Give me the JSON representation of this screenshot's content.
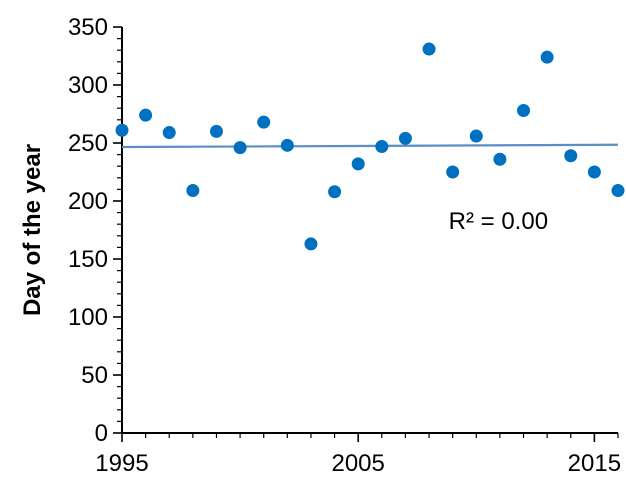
{
  "chart_data": {
    "type": "scatter",
    "title": "",
    "xlabel": "",
    "ylabel": "Day of the year",
    "xlim": [
      1995,
      2016
    ],
    "ylim": [
      0,
      350
    ],
    "grid": false,
    "x_ticks": [
      1995,
      2005,
      2015
    ],
    "y_ticks": [
      0,
      50,
      100,
      150,
      200,
      250,
      300,
      350
    ],
    "x_tick_labels": [
      "1995",
      "2005",
      "2015"
    ],
    "y_tick_labels": [
      "0",
      "50",
      "100",
      "150",
      "200",
      "250",
      "300",
      "350"
    ],
    "series": [
      {
        "x": [
          1995,
          1996,
          1997,
          1998,
          1999,
          2000,
          2001,
          2002,
          2003,
          2004,
          2005,
          2006,
          2007,
          2008,
          2009,
          2010,
          2011,
          2012,
          2013,
          2014,
          2015,
          2016
        ],
        "values": [
          261,
          274,
          259,
          209,
          260,
          246,
          268,
          248,
          163,
          208,
          232,
          247,
          254,
          331,
          225,
          256,
          236,
          278,
          324,
          239,
          225,
          209
        ],
        "color": "#0070C0"
      }
    ],
    "trendline": {
      "x": [
        1995,
        2016
      ],
      "y": [
        246.5,
        248.5
      ],
      "color": "#5B8DC9"
    },
    "annotations": [
      {
        "text": "R² = 0.00",
        "x": 2009.0,
        "y": 200
      }
    ]
  }
}
